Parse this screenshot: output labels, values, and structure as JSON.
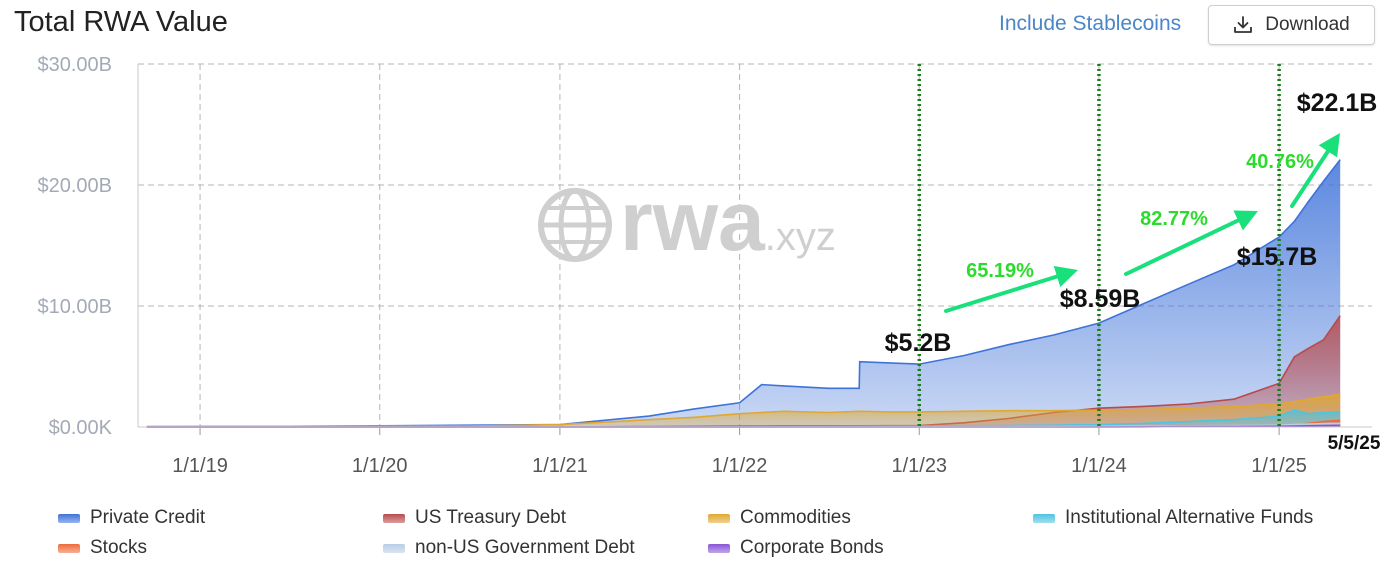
{
  "header": {
    "title": "Total RWA Value",
    "stablecoins_label": "Include Stablecoins",
    "download_label": "Download"
  },
  "chart_data": {
    "type": "area",
    "title": "Total RWA Value",
    "x_tick_labels": [
      "1/1/19",
      "1/1/20",
      "1/1/21",
      "1/1/22",
      "1/1/23",
      "1/1/24",
      "1/1/25"
    ],
    "y_tick_labels": [
      "$0.00K",
      "$10.00B",
      "$20.00B",
      "$30.00B"
    ],
    "ylim": [
      0,
      30
    ],
    "y_unit": "B USD",
    "stacked": false,
    "grid": true,
    "watermark": "rwa.xyz",
    "x": [
      "2018-09-15",
      "2019-01-01",
      "2019-07-01",
      "2020-01-01",
      "2020-07-01",
      "2021-01-01",
      "2021-04-01",
      "2021-07-01",
      "2021-10-01",
      "2022-01-01",
      "2022-02-15",
      "2022-04-01",
      "2022-07-01",
      "2022-09-01",
      "2022-09-02",
      "2022-11-01",
      "2023-01-01",
      "2023-04-01",
      "2023-07-01",
      "2023-10-01",
      "2024-01-01",
      "2024-04-01",
      "2024-07-01",
      "2024-10-01",
      "2025-01-01",
      "2025-02-01",
      "2025-03-01",
      "2025-04-01",
      "2025-05-05"
    ],
    "series": [
      {
        "name": "Private Credit",
        "color": "#3f73d9",
        "values": [
          0.02,
          0.03,
          0.06,
          0.1,
          0.15,
          0.2,
          0.55,
          0.9,
          1.5,
          2.0,
          3.5,
          3.4,
          3.2,
          3.2,
          5.4,
          5.3,
          5.2,
          5.9,
          6.8,
          7.6,
          8.59,
          10.2,
          11.8,
          13.4,
          15.7,
          17.0,
          18.6,
          20.3,
          22.1
        ]
      },
      {
        "name": "US Treasury Debt",
        "color": "#b94a4a",
        "values": [
          0,
          0,
          0,
          0,
          0,
          0,
          0.02,
          0.04,
          0.06,
          0.08,
          0.09,
          0.1,
          0.1,
          0.1,
          0.1,
          0.11,
          0.12,
          0.35,
          0.7,
          1.2,
          1.55,
          1.7,
          1.9,
          2.3,
          3.6,
          5.8,
          6.5,
          7.2,
          9.2
        ]
      },
      {
        "name": "Commodities",
        "color": "#e0a830",
        "values": [
          0.05,
          0.05,
          0.06,
          0.07,
          0.08,
          0.2,
          0.4,
          0.6,
          0.8,
          1.1,
          1.2,
          1.3,
          1.2,
          1.3,
          1.3,
          1.25,
          1.25,
          1.3,
          1.35,
          1.35,
          1.4,
          1.45,
          1.55,
          1.7,
          1.9,
          2.1,
          2.3,
          2.5,
          2.7
        ]
      },
      {
        "name": "Institutional Alternative Funds",
        "color": "#4fc3e0",
        "values": [
          0,
          0,
          0,
          0,
          0,
          0,
          0,
          0,
          0,
          0.02,
          0.03,
          0.04,
          0.05,
          0.06,
          0.06,
          0.07,
          0.08,
          0.1,
          0.12,
          0.15,
          0.2,
          0.3,
          0.45,
          0.6,
          0.9,
          1.4,
          1.1,
          1.2,
          1.25
        ]
      },
      {
        "name": "Stocks",
        "color": "#ef6a3a",
        "values": [
          0,
          0,
          0,
          0,
          0,
          0,
          0,
          0,
          0,
          0,
          0,
          0,
          0,
          0,
          0,
          0,
          0,
          0,
          0,
          0,
          0.01,
          0.02,
          0.04,
          0.06,
          0.08,
          0.15,
          0.3,
          0.45,
          0.55
        ]
      },
      {
        "name": "non-US Government Debt",
        "color": "#b8cde6",
        "values": [
          0,
          0,
          0,
          0,
          0,
          0,
          0,
          0,
          0,
          0,
          0,
          0.01,
          0.01,
          0.01,
          0.01,
          0.02,
          0.02,
          0.03,
          0.04,
          0.05,
          0.06,
          0.08,
          0.1,
          0.12,
          0.15,
          0.2,
          0.25,
          0.28,
          0.3
        ]
      },
      {
        "name": "Corporate Bonds",
        "color": "#8a55d6",
        "values": [
          0,
          0,
          0,
          0,
          0,
          0,
          0,
          0,
          0,
          0,
          0,
          0,
          0,
          0,
          0,
          0,
          0,
          0,
          0,
          0,
          0.01,
          0.02,
          0.03,
          0.04,
          0.06,
          0.08,
          0.1,
          0.12,
          0.14
        ]
      }
    ],
    "end_date_label": "5/5/25",
    "markers": [
      {
        "date": "2023-01-01",
        "label": "$5.2B"
      },
      {
        "date": "2024-01-01",
        "label": "$8.59B"
      },
      {
        "date": "2025-01-01",
        "label": "$15.7B"
      },
      {
        "date": "2025-05-05",
        "label": "$22.1B"
      }
    ],
    "growth_annotations": [
      {
        "from": "2023-01-01",
        "to": "2024-01-01",
        "label": "65.19%"
      },
      {
        "from": "2024-01-01",
        "to": "2025-01-01",
        "label": "82.77%"
      },
      {
        "from": "2025-01-01",
        "to": "2025-05-05",
        "label": "40.76%"
      }
    ]
  }
}
